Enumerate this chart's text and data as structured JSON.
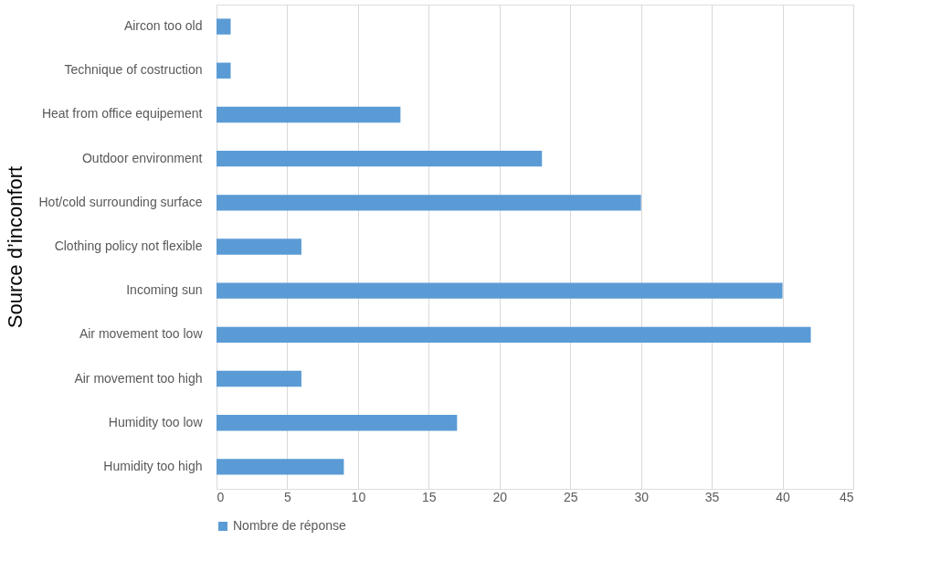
{
  "chart_data": {
    "type": "bar",
    "orientation": "horizontal",
    "ylabel": "Source d’inconfort",
    "categories": [
      "Aircon too old",
      "Technique of costruction",
      "Heat from office equipement",
      "Outdoor environment",
      "Hot/cold surrounding surface",
      "Clothing policy not flexible",
      "Incoming sun",
      "Air movement too low",
      "Air movement too high",
      "Humidity too low",
      "Humidity too high"
    ],
    "series": [
      {
        "name": "Nombre de réponse",
        "color": "#5b9bd5",
        "values": [
          1,
          1,
          13,
          23,
          30,
          6,
          40,
          42,
          6,
          17,
          9
        ]
      }
    ],
    "xlim": [
      0,
      45
    ],
    "xticks": [
      0,
      5,
      10,
      15,
      20,
      25,
      30,
      35,
      40,
      45
    ],
    "grid": "x",
    "legend": "bottom"
  }
}
